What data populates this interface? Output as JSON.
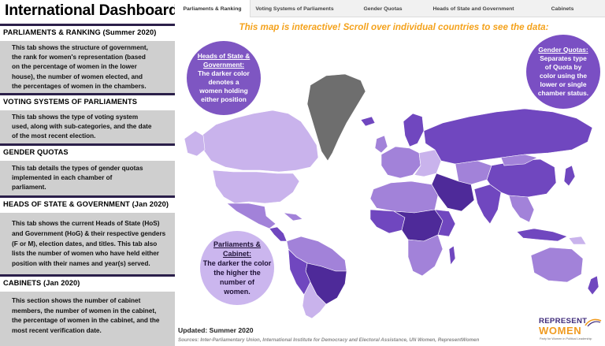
{
  "sidebar": {
    "title": "International Dashboard",
    "sections": [
      {
        "heading": "PARLIAMENTS & RANKING (Summer 2020)",
        "lines": [
          "This tab shows the structure of government,",
          "the rank for women's representation (based",
          "on the percentage of women in the lower",
          "house), the number of women elected, and",
          "the percentages of women in the chambers."
        ]
      },
      {
        "heading": "VOTING SYSTEMS OF PARLIAMENTS",
        "lines": [
          "This tab shows the type of voting system",
          "used, along with sub-categories, and the date",
          "of the most recent election."
        ]
      },
      {
        "heading": "GENDER QUOTAS",
        "lines": [
          "This tab details the types of gender quotas",
          "implemented in each chamber of",
          "parliament."
        ]
      },
      {
        "heading": "HEADS OF STATE & GOVERNMENT (Jan 2020)",
        "lines": [
          "This tab shows the current Heads of State (HoS)",
          "and Government (HoG) & their respective genders",
          "(F or M), election dates, and titles. This tab also",
          "lists the number of women who have held either",
          "position with their names and year(s) served."
        ]
      },
      {
        "heading": "CABINETS (Jan 2020)",
        "lines": [
          "This section shows the number of cabinet",
          "members, the number of women in the cabinet,",
          "the percentage of women in the cabinet, and the",
          "most recent verification date."
        ]
      }
    ]
  },
  "tabs": [
    {
      "label": "Parliaments & Ranking",
      "active": true
    },
    {
      "label": "Voting Systems of Parliaments",
      "active": false
    },
    {
      "label": "Gender Quotas",
      "active": false
    },
    {
      "label": "Heads of State and Government",
      "active": false
    },
    {
      "label": "Cabinets",
      "active": false
    }
  ],
  "main": {
    "instruction": "This map is interactive! Scroll over individual countries to see the data:",
    "bubbles": {
      "heads": {
        "title": "Heads of State & Government:",
        "lines": [
          "The darker color",
          "denotes a",
          "women holding",
          "either position"
        ]
      },
      "quotas": {
        "title": "Gender Quotas:",
        "lines": [
          "Separates type",
          "of Quota by",
          "color using the",
          "lower or single",
          "chamber status."
        ]
      },
      "parliaments": {
        "title": "Parliaments & Cabinet:",
        "lines": [
          "The darker the color",
          "the higher the",
          "number of",
          "women."
        ]
      }
    },
    "updated": "Updated: Summer 2020",
    "sources": "Sources: Inter-Parliamentary Union, International Institute for Democracy and Electoral Assistance, UN Women, RepresentWomen"
  },
  "logo": {
    "top": "REPRESENT",
    "main": "WOMEN",
    "sub": "Party for Women in Political Leadership"
  },
  "colors": {
    "sidebar_panel": "#cfcfcf",
    "section_border": "#2b1f4a",
    "accent_orange": "#f4a21c",
    "map_light": "#c9b3ec",
    "map_mid": "#a282d9",
    "map_dark": "#7047bf",
    "map_darkest": "#4e2a99",
    "greenland": "#6e6e6e"
  }
}
